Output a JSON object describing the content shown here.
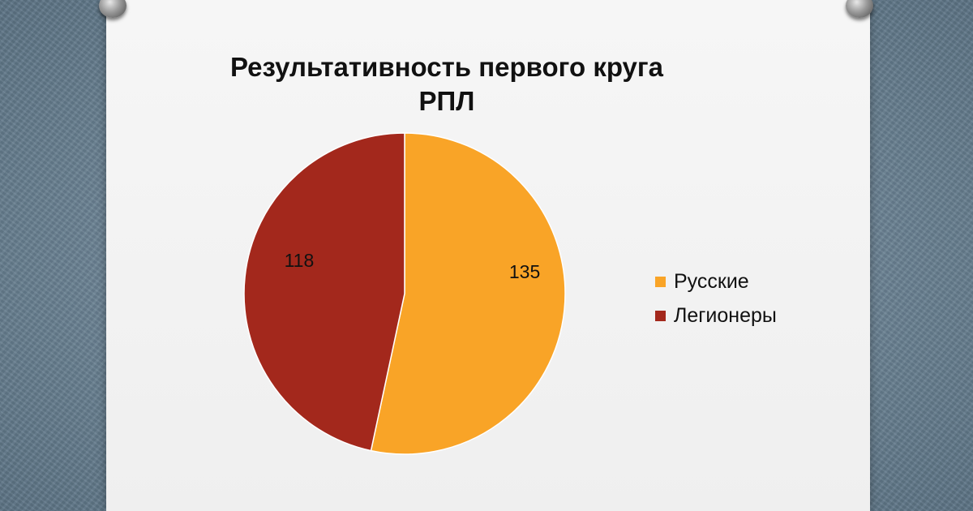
{
  "chart_data": {
    "type": "pie",
    "title_lines": [
      "Результативность первого круга",
      "РПЛ"
    ],
    "slices": [
      {
        "name": "Русские",
        "value": 135,
        "label": "135",
        "color": "#f9a427"
      },
      {
        "name": "Легионеры",
        "value": 118,
        "label": "118",
        "color": "#a3281c"
      }
    ],
    "legend": {
      "placement": "right",
      "items": [
        "Русские",
        "Легионеры"
      ]
    }
  }
}
